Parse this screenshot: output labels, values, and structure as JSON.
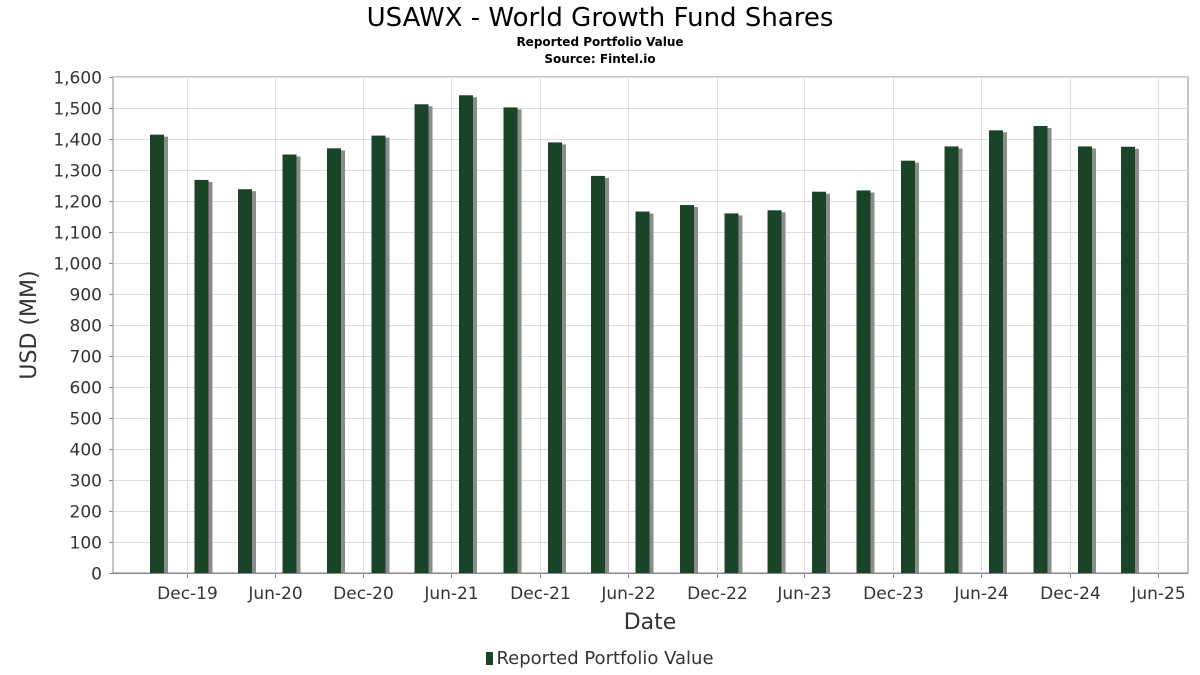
{
  "title": "USAWX - World Growth Fund Shares",
  "subtitle": "Reported Portfolio Value",
  "source": "Source: Fintel.io",
  "colors": {
    "bar": "#1a4428",
    "shadow": "#8c8c8c",
    "grid": "#dddddd",
    "axis": "#888888"
  },
  "chart_data": {
    "type": "bar",
    "xlabel": "Date",
    "ylabel": "USD (MM)",
    "ylim": [
      0,
      1600
    ],
    "y_ticks": [
      0,
      100,
      200,
      300,
      400,
      500,
      600,
      700,
      800,
      900,
      1000,
      1100,
      1200,
      1300,
      1400,
      1500,
      1600
    ],
    "y_tick_labels": [
      "0",
      "100",
      "200",
      "300",
      "400",
      "500",
      "600",
      "700",
      "800",
      "900",
      "1,000",
      "1,100",
      "1,200",
      "1,300",
      "1,400",
      "1,500",
      "1,600"
    ],
    "x_range": [
      "2019-08-01",
      "2025-09-01"
    ],
    "x_ticks": [
      "2019-12-31",
      "2020-06-30",
      "2020-12-31",
      "2021-06-30",
      "2021-12-31",
      "2022-06-30",
      "2022-12-31",
      "2023-06-30",
      "2023-12-31",
      "2024-06-30",
      "2024-12-31",
      "2025-06-30"
    ],
    "x_tick_labels": [
      "Dec-19",
      "Jun-20",
      "Dec-20",
      "Jun-21",
      "Dec-21",
      "Jun-22",
      "Dec-22",
      "Jun-23",
      "Dec-23",
      "Jun-24",
      "Dec-24",
      "Jun-25"
    ],
    "grid": true,
    "legend": "bottom-center",
    "series": [
      {
        "name": "Reported Portfolio Value",
        "dates": [
          "2019-10-31",
          "2020-01-31",
          "2020-04-30",
          "2020-07-31",
          "2020-10-31",
          "2021-01-31",
          "2021-04-30",
          "2021-07-31",
          "2021-10-31",
          "2022-01-31",
          "2022-04-30",
          "2022-07-31",
          "2022-10-31",
          "2023-01-31",
          "2023-04-30",
          "2023-07-31",
          "2023-10-31",
          "2024-01-31",
          "2024-04-30",
          "2024-07-31",
          "2024-10-31",
          "2025-01-31",
          "2025-04-30"
        ],
        "values": [
          1414,
          1268,
          1238,
          1350,
          1370,
          1411,
          1512,
          1541,
          1502,
          1389,
          1281,
          1166,
          1187,
          1160,
          1170,
          1230,
          1234,
          1330,
          1376,
          1428,
          1442,
          1376,
          1375
        ]
      }
    ]
  }
}
